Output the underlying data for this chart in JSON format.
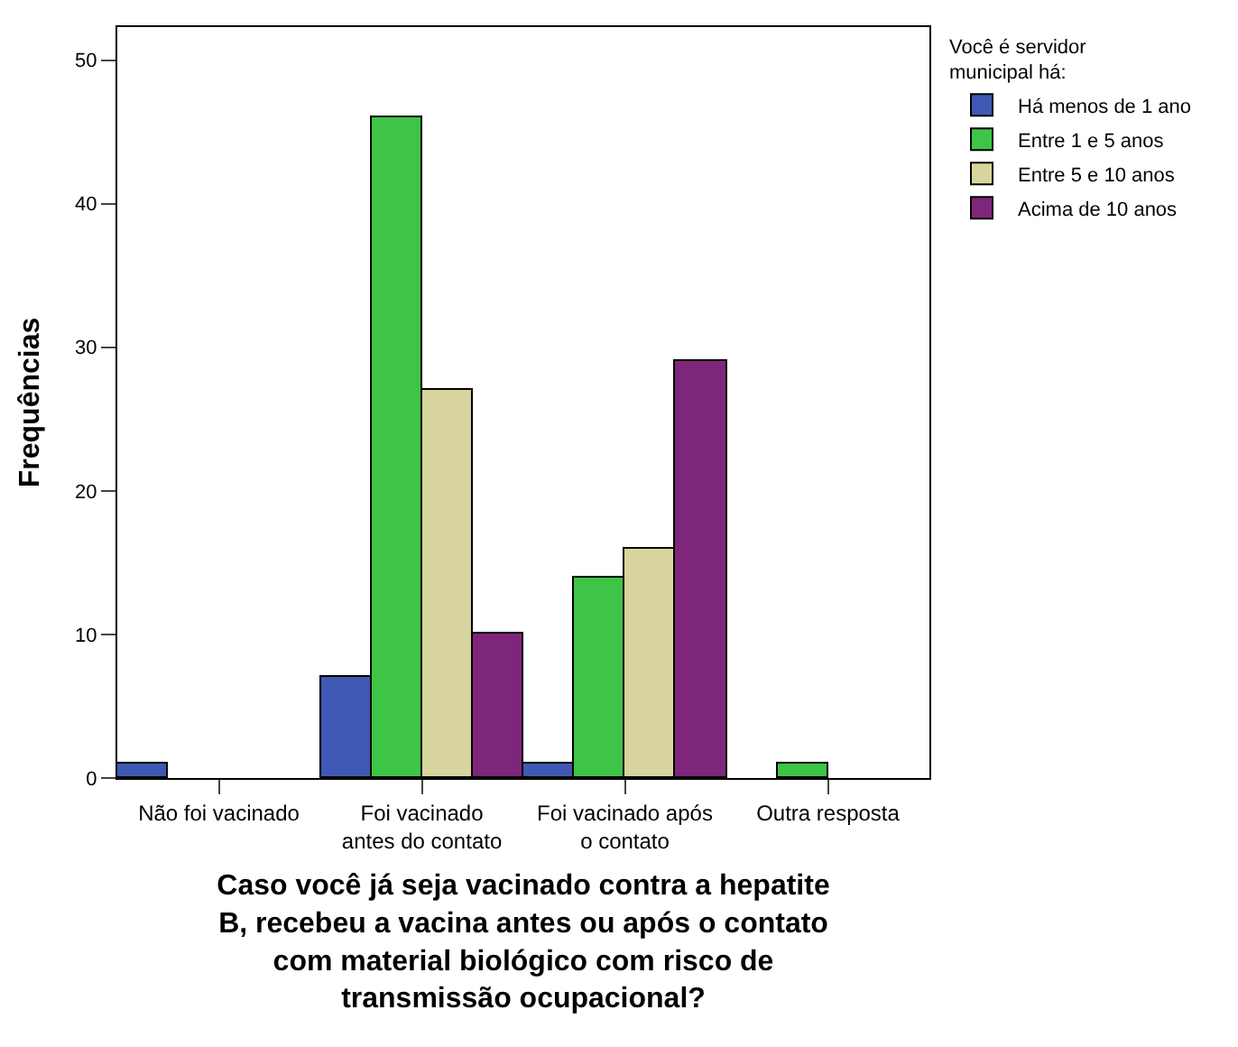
{
  "chart_data": {
    "type": "bar",
    "xlabel": "Caso você já seja vacinado contra a hepatite B, recebeu a vacina antes ou após o contato com material biológico com risco de transmissão ocupacional?",
    "ylabel": "Frequências",
    "legend_title": "Você é servidor municipal há:",
    "categories": [
      "Não foi vacinado",
      "Foi vacinado antes do contato",
      "Foi vacinado após o contato",
      "Outra resposta"
    ],
    "series": [
      {
        "name": "Há menos de 1 ano",
        "color": "#3f58b4",
        "values": [
          1,
          7,
          1,
          null
        ]
      },
      {
        "name": "Entre 1 e 5 anos",
        "color": "#3ec447",
        "values": [
          null,
          46,
          14,
          1
        ]
      },
      {
        "name": "Entre 5 e 10 anos",
        "color": "#d8d49e",
        "values": [
          null,
          27,
          16,
          null
        ]
      },
      {
        "name": "Acima de 10 anos",
        "color": "#7e267c",
        "values": [
          null,
          10,
          29,
          null
        ]
      }
    ],
    "ylim": [
      0,
      52.3
    ],
    "yticks": [
      0,
      10,
      20,
      30,
      40,
      50
    ],
    "legend": "right"
  }
}
